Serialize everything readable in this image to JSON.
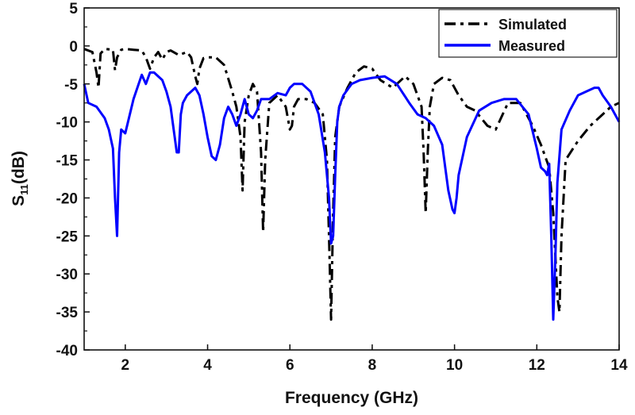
{
  "chart_data": {
    "type": "line",
    "xlabel": "Frequency (GHz)",
    "ylabel_main": "S",
    "ylabel_sub": "11",
    "ylabel_suffix": "(dB)",
    "xlim": [
      1,
      14
    ],
    "ylim": [
      -40,
      5
    ],
    "x_ticks": [
      2,
      4,
      6,
      8,
      10,
      12,
      14
    ],
    "y_ticks": [
      5,
      0,
      -5,
      -10,
      -15,
      -20,
      -25,
      -30,
      -35,
      -40
    ],
    "legend_position": "top-right",
    "grid": false,
    "series": [
      {
        "name": "Simulated",
        "color": "#000000",
        "style": "dash-dot",
        "x": [
          1.0,
          1.2,
          1.3,
          1.35,
          1.4,
          1.5,
          1.7,
          1.75,
          1.8,
          1.9,
          2.0,
          2.2,
          2.4,
          2.5,
          2.6,
          2.7,
          2.8,
          2.9,
          3.0,
          3.1,
          3.3,
          3.5,
          3.6,
          3.7,
          3.75,
          3.8,
          3.9,
          4.0,
          4.2,
          4.4,
          4.6,
          4.7,
          4.8,
          4.85,
          4.9,
          5.0,
          5.1,
          5.2,
          5.3,
          5.35,
          5.4,
          5.5,
          5.7,
          5.9,
          6.0,
          6.05,
          6.1,
          6.2,
          6.4,
          6.6,
          6.8,
          6.9,
          6.95,
          7.0,
          7.05,
          7.1,
          7.2,
          7.4,
          7.6,
          7.8,
          8.0,
          8.2,
          8.5,
          8.8,
          9.0,
          9.2,
          9.25,
          9.3,
          9.35,
          9.4,
          9.5,
          9.7,
          9.9,
          10.1,
          10.3,
          10.5,
          10.8,
          11.0,
          11.3,
          11.6,
          11.9,
          12.1,
          12.3,
          12.4,
          12.5,
          12.55,
          12.6,
          12.7,
          13.0,
          13.3,
          13.6,
          13.8,
          14.0
        ],
        "y": [
          -0.4,
          -0.8,
          -3.5,
          -5.5,
          -1.0,
          -0.4,
          -0.5,
          -3.2,
          -1.5,
          -0.5,
          -0.4,
          -0.5,
          -0.6,
          -1.5,
          -3.0,
          -1.5,
          -0.8,
          -1.8,
          -0.8,
          -0.6,
          -1.2,
          -0.8,
          -1.5,
          -4.0,
          -5.0,
          -3.0,
          -1.6,
          -1.5,
          -1.5,
          -2.5,
          -6.0,
          -8.0,
          -12.0,
          -19.0,
          -10.0,
          -6.5,
          -5.0,
          -6.0,
          -14.0,
          -24.5,
          -15.0,
          -7.5,
          -6.5,
          -8.0,
          -11.0,
          -10.5,
          -8.0,
          -7.0,
          -7.0,
          -7.5,
          -9.0,
          -15.0,
          -25.0,
          -36.0,
          -22.0,
          -12.0,
          -8.0,
          -5.5,
          -3.5,
          -2.7,
          -3.0,
          -4.5,
          -5.5,
          -4.0,
          -5.0,
          -8.0,
          -14.0,
          -22.0,
          -14.0,
          -8.0,
          -5.0,
          -4.2,
          -4.5,
          -6.5,
          -8.0,
          -8.5,
          -10.5,
          -11.0,
          -7.5,
          -7.5,
          -10.5,
          -13.0,
          -16.0,
          -22.0,
          -33.0,
          -35.0,
          -25.0,
          -15.0,
          -12.5,
          -10.5,
          -9.0,
          -8.0,
          -7.5
        ]
      },
      {
        "name": "Measured",
        "color": "#0000ff",
        "style": "solid",
        "x": [
          1.0,
          1.1,
          1.3,
          1.5,
          1.6,
          1.7,
          1.75,
          1.8,
          1.85,
          1.9,
          2.0,
          2.2,
          2.4,
          2.5,
          2.6,
          2.7,
          2.9,
          3.0,
          3.1,
          3.2,
          3.25,
          3.3,
          3.35,
          3.4,
          3.5,
          3.7,
          3.8,
          3.9,
          4.0,
          4.1,
          4.2,
          4.3,
          4.4,
          4.5,
          4.6,
          4.7,
          4.8,
          4.9,
          5.0,
          5.1,
          5.2,
          5.3,
          5.5,
          5.7,
          5.9,
          6.0,
          6.1,
          6.3,
          6.5,
          6.7,
          6.85,
          6.95,
          7.0,
          7.05,
          7.1,
          7.15,
          7.2,
          7.3,
          7.5,
          7.7,
          8.0,
          8.3,
          8.6,
          8.9,
          9.1,
          9.3,
          9.5,
          9.7,
          9.85,
          9.95,
          10.0,
          10.05,
          10.1,
          10.3,
          10.6,
          10.9,
          11.2,
          11.5,
          11.8,
          12.0,
          12.1,
          12.2,
          12.25,
          12.3,
          12.35,
          12.4,
          12.45,
          12.5,
          12.6,
          12.8,
          13.0,
          13.2,
          13.4,
          13.5,
          13.6,
          13.8,
          14.0
        ],
        "y": [
          -5.0,
          -7.5,
          -8.0,
          -9.5,
          -11.0,
          -13.5,
          -20.0,
          -25.0,
          -14.0,
          -11.0,
          -11.5,
          -7.0,
          -3.8,
          -5.0,
          -3.5,
          -3.5,
          -4.5,
          -6.0,
          -8.0,
          -12.0,
          -14.0,
          -14.0,
          -9.0,
          -7.5,
          -6.5,
          -5.5,
          -6.5,
          -9.0,
          -12.0,
          -14.5,
          -15.0,
          -13.0,
          -9.5,
          -8.0,
          -9.0,
          -10.5,
          -9.0,
          -7.0,
          -9.0,
          -9.5,
          -8.5,
          -7.0,
          -7.0,
          -6.2,
          -6.5,
          -5.5,
          -5.0,
          -5.0,
          -6.0,
          -9.0,
          -14.0,
          -20.0,
          -26.0,
          -25.0,
          -17.0,
          -10.0,
          -8.0,
          -6.5,
          -5.0,
          -4.5,
          -4.2,
          -4.0,
          -5.0,
          -7.5,
          -9.0,
          -9.5,
          -10.5,
          -13.0,
          -19.0,
          -21.5,
          -22.0,
          -20.0,
          -17.0,
          -12.0,
          -8.5,
          -7.5,
          -7.0,
          -7.0,
          -9.0,
          -13.5,
          -16.0,
          -16.5,
          -17.0,
          -15.5,
          -25.0,
          -36.0,
          -28.0,
          -18.0,
          -11.0,
          -8.5,
          -6.5,
          -6.0,
          -5.5,
          -5.5,
          -6.5,
          -8.0,
          -10.0
        ]
      }
    ]
  }
}
